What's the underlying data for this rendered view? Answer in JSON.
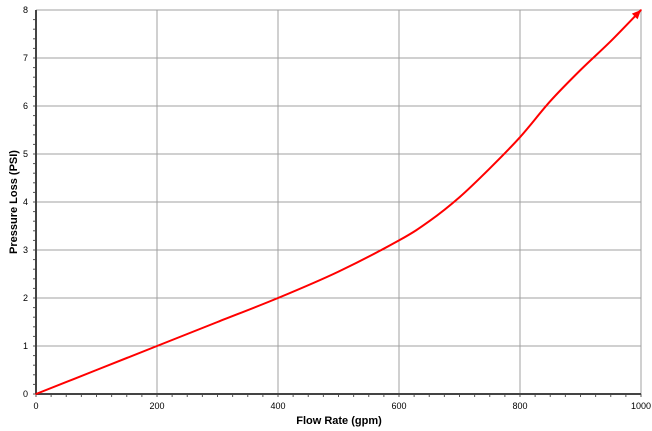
{
  "chart_data": {
    "type": "line",
    "title": "",
    "xlabel": "Flow Rate (gpm)",
    "ylabel": "Pressure Loss (PSI)",
    "xlim": [
      0,
      1000
    ],
    "ylim": [
      0,
      8
    ],
    "x_ticks": [
      0,
      200,
      400,
      600,
      800,
      1000
    ],
    "y_ticks": [
      0,
      1,
      2,
      3,
      4,
      5,
      6,
      7,
      8
    ],
    "x_tick_labels": [
      "0",
      "200",
      "400",
      "600",
      "800",
      "1000"
    ],
    "y_tick_labels": [
      "0",
      "1",
      "2",
      "3",
      "4",
      "5",
      "6",
      "7",
      "8"
    ],
    "grid": true,
    "legend": "none",
    "series": [
      {
        "color": "#ff0000",
        "x": [
          0,
          100,
          200,
          300,
          400,
          500,
          600,
          650,
          700,
          750,
          800,
          850,
          900,
          950,
          1000
        ],
        "y": [
          0,
          0.5,
          1.0,
          1.5,
          2.0,
          2.55,
          3.2,
          3.6,
          4.1,
          4.7,
          5.35,
          6.1,
          6.75,
          7.35,
          8.0
        ]
      }
    ]
  }
}
